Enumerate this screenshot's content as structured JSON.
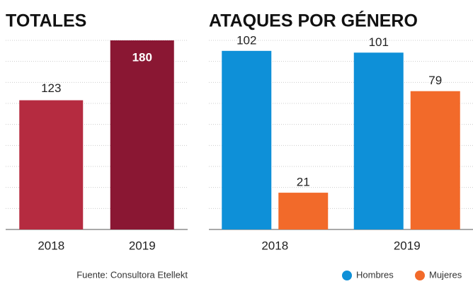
{
  "chart_data": [
    {
      "type": "bar",
      "title": "TOTALES",
      "categories": [
        "2018",
        "2019"
      ],
      "values": [
        123,
        180
      ],
      "colors": [
        "#b52b40",
        "#8a1733"
      ],
      "ylim": [
        0,
        180
      ],
      "yticks": [
        0,
        20,
        40,
        60,
        80,
        100,
        120,
        140,
        160,
        180
      ],
      "grid": true,
      "source": "Fuente: Consultora Etellekt"
    },
    {
      "type": "grouped_bar",
      "title": "ATAQUES POR GÉNERO",
      "categories": [
        "2018",
        "2019"
      ],
      "series": [
        {
          "name": "Hombres",
          "color": "#0e90d8",
          "values": [
            102,
            101
          ]
        },
        {
          "name": "Mujeres",
          "color": "#f26a2a",
          "values": [
            21,
            79
          ]
        }
      ],
      "ylim": [
        0,
        108
      ],
      "yticks": [
        0,
        12,
        24,
        36,
        48,
        60,
        72,
        84,
        96,
        108
      ],
      "grid": true,
      "legend": "bottom-right"
    }
  ]
}
